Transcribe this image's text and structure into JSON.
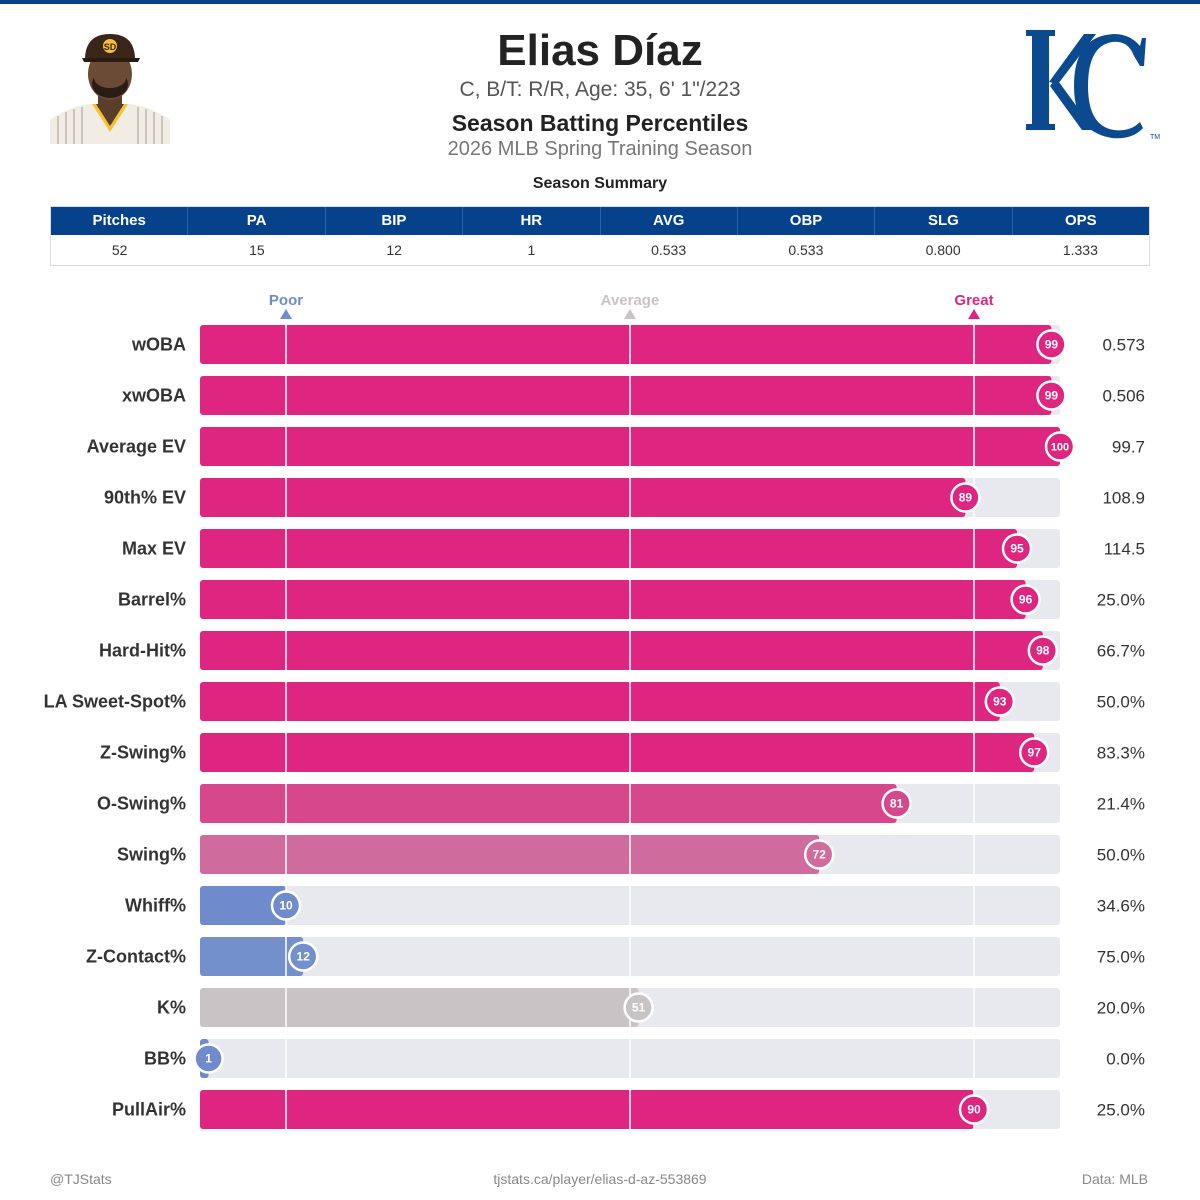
{
  "header": {
    "name": "Elias Díaz",
    "bio": "C, B/T: R/R, Age: 35, 6' 1\"/223",
    "subtitle": "Season Batting Percentiles",
    "season": "2026 MLB Spring Training Season",
    "headshot": "player-headshot-padres-cap",
    "logo": "kansas-city-royals-kc-logo"
  },
  "summary": {
    "title": "Season Summary",
    "headers": [
      "Pitches",
      "PA",
      "BIP",
      "HR",
      "AVG",
      "OBP",
      "SLG",
      "OPS"
    ],
    "values": [
      "52",
      "15",
      "12",
      "1",
      "0.533",
      "0.533",
      "0.800",
      "1.333"
    ]
  },
  "colors": {
    "header_blue": "#06428b",
    "great": "#de2680",
    "average": "#c8c4c6",
    "poor": "#6f8bcb",
    "track": "#e8e9ee"
  },
  "chart_data": {
    "type": "bar",
    "orientation": "horizontal",
    "xlim": [
      0,
      100
    ],
    "reference_labels": [
      {
        "label": "Poor",
        "value": 10
      },
      {
        "label": "Average",
        "value": 50
      },
      {
        "label": "Great",
        "value": 90
      }
    ],
    "categories": [
      "wOBA",
      "xwOBA",
      "Average EV",
      "90th% EV",
      "Max EV",
      "Barrel%",
      "Hard-Hit%",
      "LA Sweet-Spot%",
      "Z-Swing%",
      "O-Swing%",
      "Swing%",
      "Whiff%",
      "Z-Contact%",
      "K%",
      "BB%",
      "PullAir%"
    ],
    "percentiles": [
      99,
      99,
      100,
      89,
      95,
      96,
      98,
      93,
      97,
      81,
      72,
      10,
      12,
      51,
      1,
      90
    ],
    "stat_values": [
      "0.573",
      "0.506",
      "99.7",
      "108.9",
      "114.5",
      "25.0%",
      "66.7%",
      "50.0%",
      "83.3%",
      "21.4%",
      "50.0%",
      "34.6%",
      "75.0%",
      "20.0%",
      "0.0%",
      "25.0%"
    ],
    "bar_colors": [
      "#de2680",
      "#de2680",
      "#de2680",
      "#de2680",
      "#de2680",
      "#de2680",
      "#de2680",
      "#de2680",
      "#de2680",
      "#d6478b",
      "#d06b9d",
      "#6f8bcb",
      "#7490cc",
      "#c8c4c6",
      "#6f8bcb",
      "#de2680"
    ]
  },
  "footer": {
    "left": "@TJStats",
    "center": "tjstats.ca/player/elias-d-az-553869",
    "right": "Data: MLB"
  }
}
